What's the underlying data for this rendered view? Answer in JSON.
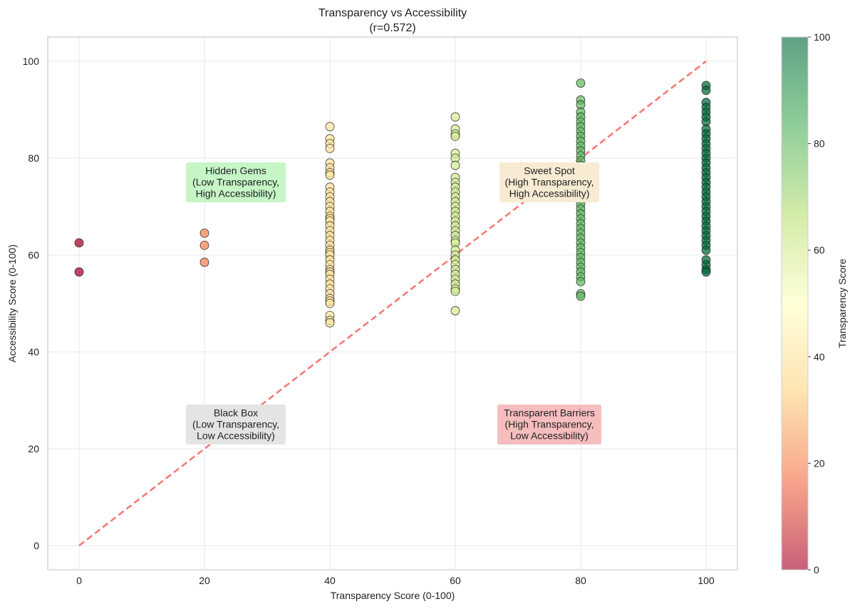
{
  "chart_data": {
    "type": "scatter",
    "title": "Transparency vs Accessibility",
    "subtitle": "(r=0.572)",
    "xlabel": "Transparency Score (0-100)",
    "ylabel": "Accessibility Score (0-100)",
    "xlim": [
      -5,
      105
    ],
    "ylim": [
      -5,
      105
    ],
    "xticks": [
      "0",
      "20",
      "40",
      "60",
      "80",
      "100"
    ],
    "yticks": [
      "0",
      "20",
      "40",
      "60",
      "80",
      "100"
    ],
    "grid": true,
    "colormap": "RdYlGn",
    "colorbar": {
      "label": "Transparency Score",
      "range": [
        0,
        100
      ],
      "ticks": [
        "0",
        "20",
        "40",
        "60",
        "80",
        "100"
      ],
      "stops": [
        "#a50026",
        "#f46d43",
        "#fdd384",
        "#ffffbf",
        "#b7e075",
        "#4bb05c",
        "#006837"
      ]
    },
    "reference_line": {
      "from": [
        0,
        0
      ],
      "to": [
        100,
        100
      ],
      "color": "#f47a76",
      "style": "dashed"
    },
    "annotations": [
      {
        "name": "hidden-gems",
        "lines": [
          "Hidden Gems",
          "(Low Transparency,",
          "High Accessibility)"
        ],
        "x": 25,
        "y": 75,
        "color": "#c6f5c6"
      },
      {
        "name": "sweet-spot",
        "lines": [
          "Sweet Spot",
          "(High Transparency,",
          "High Accessibility)"
        ],
        "x": 75,
        "y": 75,
        "color": "#f8ebd3"
      },
      {
        "name": "black-box",
        "lines": [
          "Black Box",
          "(Low Transparency,",
          "Low Accessibility)"
        ],
        "x": 25,
        "y": 25,
        "color": "#e4e4e4"
      },
      {
        "name": "transparent-barriers",
        "lines": [
          "Transparent Barriers",
          "(High Transparency,",
          "Low Accessibility)"
        ],
        "x": 75,
        "y": 25,
        "color": "#f5bdbd"
      }
    ],
    "series": [
      {
        "x": 0,
        "y": [
          62.5,
          56.5
        ]
      },
      {
        "x": 20,
        "y": [
          64.5,
          62,
          58.5
        ]
      },
      {
        "x": 40,
        "y": [
          86.5,
          84,
          83,
          82,
          79,
          78,
          77,
          76.5,
          74,
          73,
          72,
          71,
          70,
          69,
          68,
          67.5,
          67,
          66,
          65,
          64,
          63,
          62,
          61,
          60.5,
          60,
          59,
          58,
          57,
          56.5,
          56,
          55,
          54,
          53,
          52,
          51,
          50.5,
          50,
          47.5,
          46.5,
          46
        ]
      },
      {
        "x": 60,
        "y": [
          88.5,
          86,
          85,
          84.5,
          81,
          80,
          78.5,
          76,
          75,
          74,
          73,
          72,
          71,
          70,
          69,
          68,
          67,
          66,
          65,
          64,
          63,
          62.5,
          61,
          60,
          59,
          58,
          57,
          56,
          55,
          54,
          53,
          52.5,
          48.5
        ]
      },
      {
        "x": 80,
        "y": [
          95.5,
          92,
          91,
          89.5,
          88.5,
          87.5,
          86.5,
          85.5,
          84.5,
          83.5,
          82.5,
          81.5,
          80.5,
          79.5,
          78.5,
          77.5,
          76.5,
          75.5,
          74.5,
          73.5,
          72.5,
          71.5,
          70.5,
          69.5,
          68.5,
          67.5,
          66.5,
          65.5,
          64.5,
          63.5,
          62.5,
          61.5,
          60.5,
          59.5,
          58.5,
          57.5,
          56.5,
          55.5,
          54.5,
          52,
          51.5
        ]
      },
      {
        "x": 100,
        "y": [
          95,
          94,
          91.5,
          90.5,
          89.5,
          88.5,
          87.5,
          86,
          85,
          84,
          83,
          82,
          81,
          80,
          79,
          78,
          77,
          76,
          75,
          74,
          73,
          72,
          71,
          70,
          69,
          68,
          67,
          66,
          65,
          64,
          63,
          62,
          61,
          59,
          58,
          57,
          56.5
        ]
      }
    ]
  }
}
